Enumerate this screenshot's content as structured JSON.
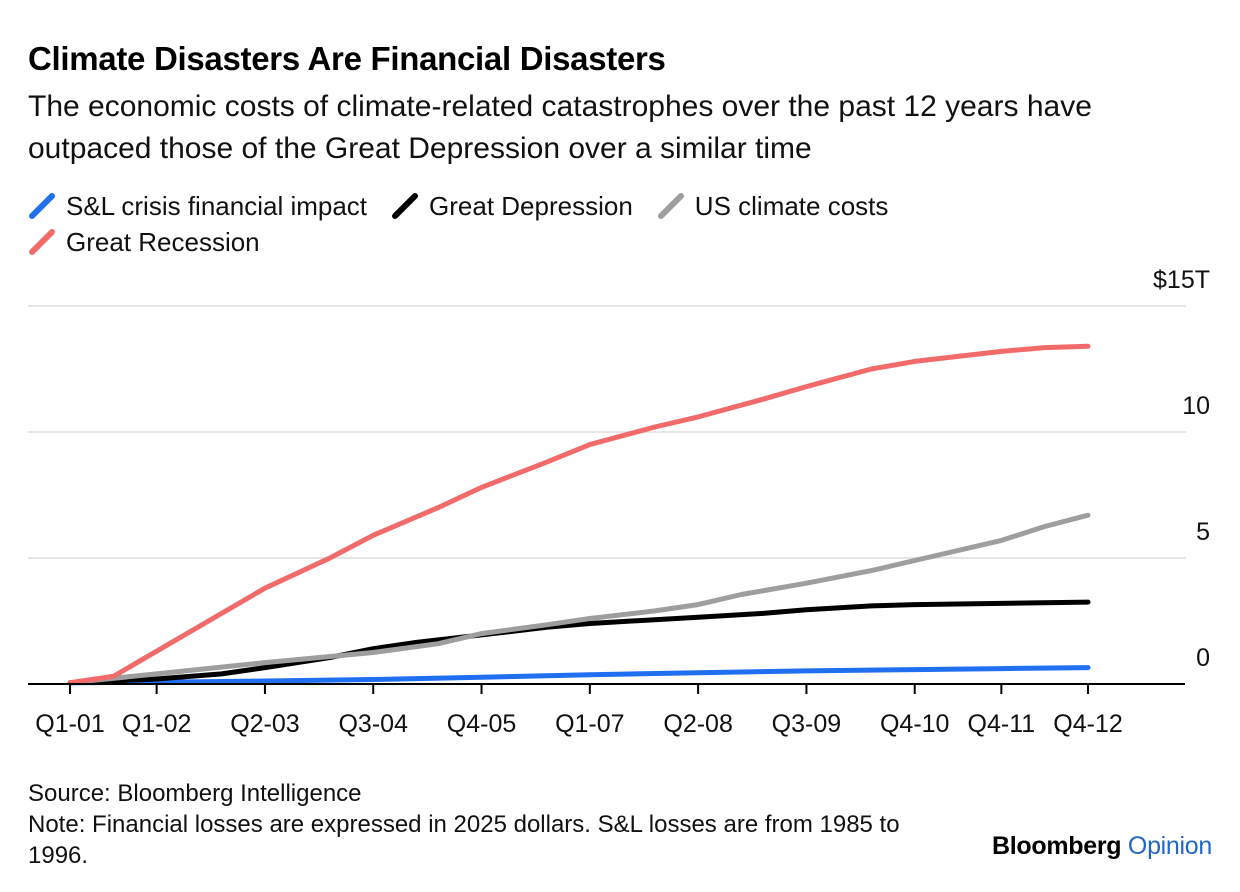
{
  "header": {
    "title": "Climate Disasters Are Financial Disasters",
    "subtitle": "The economic costs of climate-related catastrophes over the past 12 years have outpaced those of the Great Depression over a similar time"
  },
  "footer": {
    "source": "Source: Bloomberg Intelligence",
    "note": "Note: Financial losses are expressed in 2025 dollars. S&L losses are from 1985 to 1996.",
    "brand_main": "Bloomberg",
    "brand_sub": "Opinion"
  },
  "chart_data": {
    "type": "line",
    "title": "Climate Disasters Are Financial Disasters",
    "xlabel": "",
    "ylabel": "",
    "ylim": [
      0,
      15
    ],
    "y_ticks": [
      "0",
      "5",
      "10",
      "$15T"
    ],
    "grid": true,
    "legend_position": "top-left",
    "x_ticks": [
      "Q1-01",
      "Q1-02",
      "Q2-03",
      "Q3-04",
      "Q4-05",
      "Q1-07",
      "Q2-08",
      "Q3-09",
      "Q4-10",
      "Q4-11",
      "Q4-12"
    ],
    "x_tick_index": [
      0,
      4,
      9,
      14,
      19,
      24,
      29,
      34,
      39,
      43,
      47
    ],
    "x_count": 48,
    "series": [
      {
        "name": "S&L crisis financial impact",
        "color": "#1f6ff0",
        "points": [
          [
            0,
            0.05
          ],
          [
            4,
            0.07
          ],
          [
            9,
            0.12
          ],
          [
            14,
            0.18
          ],
          [
            19,
            0.27
          ],
          [
            24,
            0.37
          ],
          [
            29,
            0.45
          ],
          [
            34,
            0.52
          ],
          [
            39,
            0.57
          ],
          [
            43,
            0.61
          ],
          [
            47,
            0.65
          ]
        ]
      },
      {
        "name": "Great Depression",
        "color": "#000000",
        "points": [
          [
            0,
            0.05
          ],
          [
            4,
            0.2
          ],
          [
            7,
            0.4
          ],
          [
            9,
            0.65
          ],
          [
            12,
            1.05
          ],
          [
            14,
            1.4
          ],
          [
            16,
            1.65
          ],
          [
            19,
            1.95
          ],
          [
            22,
            2.25
          ],
          [
            24,
            2.4
          ],
          [
            27,
            2.55
          ],
          [
            29,
            2.65
          ],
          [
            32,
            2.8
          ],
          [
            34,
            2.95
          ],
          [
            37,
            3.1
          ],
          [
            39,
            3.15
          ],
          [
            43,
            3.2
          ],
          [
            47,
            3.25
          ]
        ]
      },
      {
        "name": "US climate costs",
        "color": "#9e9e9e",
        "points": [
          [
            0,
            0.05
          ],
          [
            4,
            0.4
          ],
          [
            9,
            0.85
          ],
          [
            14,
            1.25
          ],
          [
            17,
            1.6
          ],
          [
            19,
            2.0
          ],
          [
            22,
            2.35
          ],
          [
            24,
            2.6
          ],
          [
            27,
            2.9
          ],
          [
            29,
            3.15
          ],
          [
            31,
            3.55
          ],
          [
            34,
            4.0
          ],
          [
            37,
            4.5
          ],
          [
            39,
            4.9
          ],
          [
            43,
            5.7
          ],
          [
            45,
            6.25
          ],
          [
            47,
            6.7
          ]
        ]
      },
      {
        "name": "Great Recession",
        "color": "#f26b6b",
        "points": [
          [
            0,
            0.05
          ],
          [
            2,
            0.3
          ],
          [
            4,
            1.3
          ],
          [
            7,
            2.8
          ],
          [
            9,
            3.8
          ],
          [
            12,
            5.0
          ],
          [
            14,
            5.9
          ],
          [
            17,
            7.0
          ],
          [
            19,
            7.8
          ],
          [
            22,
            8.8
          ],
          [
            24,
            9.5
          ],
          [
            27,
            10.2
          ],
          [
            29,
            10.6
          ],
          [
            32,
            11.3
          ],
          [
            34,
            11.8
          ],
          [
            37,
            12.5
          ],
          [
            39,
            12.8
          ],
          [
            41,
            13.0
          ],
          [
            43,
            13.2
          ],
          [
            45,
            13.35
          ],
          [
            47,
            13.4
          ]
        ]
      }
    ]
  }
}
